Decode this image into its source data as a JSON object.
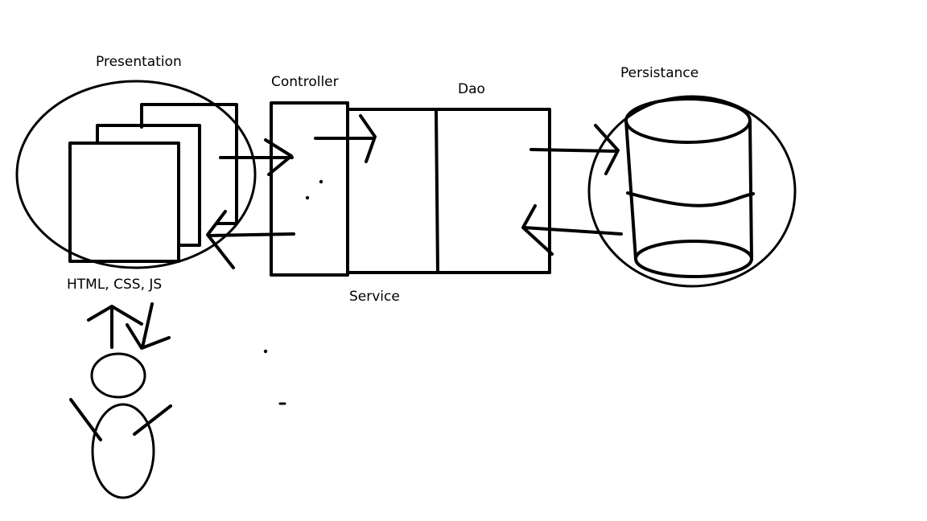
{
  "diagram": {
    "labels": {
      "presentation": "Presentation",
      "controller": "Controller",
      "dao": "Dao",
      "persistance": "Persistance",
      "frontend_tech": "HTML, CSS, JS",
      "service": "Service"
    }
  }
}
